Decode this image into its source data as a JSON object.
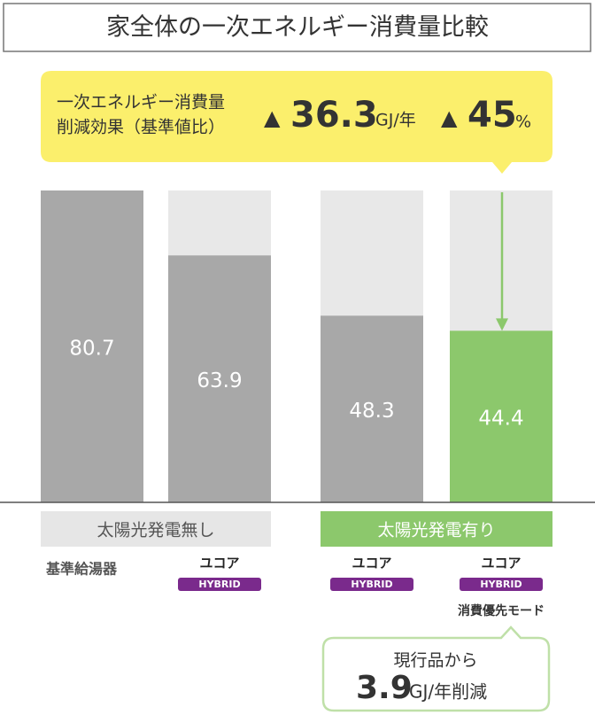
{
  "chart_data": {
    "type": "bar",
    "title": "家全体の一次エネルギー消費量比較",
    "categories": [
      "基準給湯器",
      "ユコア",
      "ユコア",
      "ユコア"
    ],
    "category_badges": [
      null,
      "HYBRID",
      "HYBRID",
      "HYBRID"
    ],
    "category_notes": [
      null,
      null,
      null,
      "消費優先モード"
    ],
    "values": [
      80.7,
      63.9,
      48.3,
      44.4
    ],
    "colors": [
      "#a8a8a8",
      "#a8a8a8",
      "#a8a8a8",
      "#8cc86c"
    ],
    "ylim": [
      0,
      80.7
    ],
    "groups": [
      {
        "label": "太陽光発電無し",
        "color": "#e6e6e6",
        "text_color": "#555555"
      },
      {
        "label": "太陽光発電有り",
        "color": "#8cc86c",
        "text_color": "#ffffff"
      }
    ],
    "callout": {
      "lines": [
        "一次エネルギー消費量",
        "削減効果（基準値比）"
      ],
      "mark1": "▲",
      "amount": 36.3,
      "amount_unit": "GJ/年",
      "mark2": "▲",
      "percent": 45,
      "percent_unit": "%"
    },
    "note": {
      "line1": "現行品から",
      "amount": 3.9,
      "unit": "GJ/年削減"
    }
  }
}
